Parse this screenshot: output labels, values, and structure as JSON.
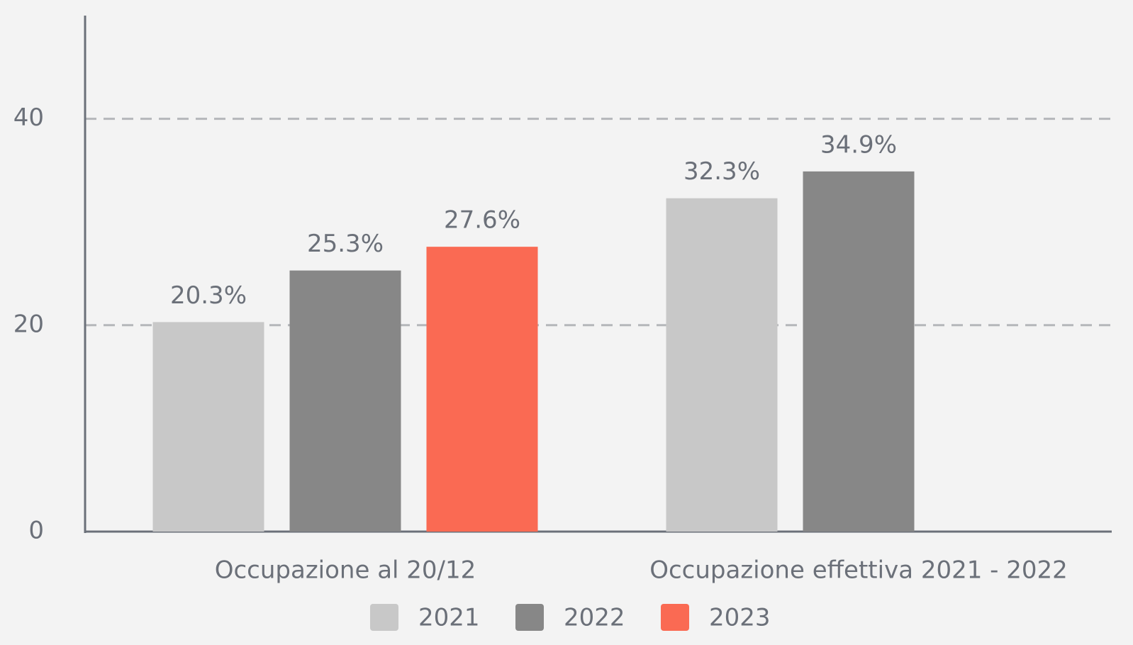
{
  "chart_data": {
    "type": "bar",
    "categories": [
      "Occupazione al 20/12",
      "Occupazione effettiva 2021 - 2022"
    ],
    "series": [
      {
        "name": "2021",
        "color": "#c8c8c8",
        "values": [
          20.3,
          32.3
        ],
        "value_labels": [
          "20.3%",
          "32.3%"
        ]
      },
      {
        "name": "2022",
        "color": "#878787",
        "values": [
          25.3,
          34.9
        ],
        "value_labels": [
          "25.3%",
          "34.9%"
        ]
      },
      {
        "name": "2023",
        "color": "#fa6a53",
        "values": [
          27.6,
          null
        ],
        "value_labels": [
          "27.6%",
          null
        ]
      }
    ],
    "ylim": [
      0,
      50
    ],
    "yticks": [
      0,
      20,
      40
    ],
    "grid": true,
    "legend": "bottom"
  }
}
